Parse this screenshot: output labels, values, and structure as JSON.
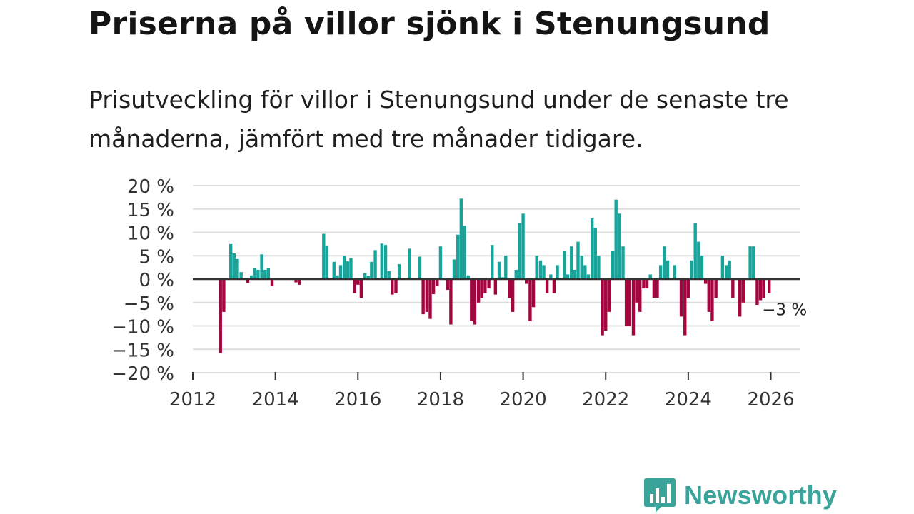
{
  "title": "Priserna på villor sjönk i Stenungsund",
  "subtitle": "Prisutveckling för villor i Stenungsund under de senaste tre månaderna, jämfört med tre månader tidigare.",
  "brand": {
    "name": "Newsworthy",
    "logo_icon": "bar-chart-speech-bubble-icon",
    "color": "#3aa39a"
  },
  "colors": {
    "positive": "#17a49b",
    "negative": "#a3063f",
    "grid": "#dddddd",
    "zero_line": "#333333"
  },
  "chart_data": {
    "type": "bar",
    "title": "Priserna på villor sjönk i Stenungsund",
    "xlabel": "",
    "ylabel": "",
    "ylim": [
      -20,
      20
    ],
    "xlim": [
      2012,
      2026.7
    ],
    "yticks": [
      {
        "value": 20,
        "label": "20 %"
      },
      {
        "value": 15,
        "label": "15 %"
      },
      {
        "value": 10,
        "label": "10 %"
      },
      {
        "value": 5,
        "label": "5 %"
      },
      {
        "value": 0,
        "label": "0 %"
      },
      {
        "value": -5,
        "label": "−5 %"
      },
      {
        "value": -10,
        "label": "−10 %"
      },
      {
        "value": -15,
        "label": "−15 %"
      },
      {
        "value": -20,
        "label": "−20 %"
      }
    ],
    "xticks": [
      {
        "value": 2012,
        "label": "2012"
      },
      {
        "value": 2014,
        "label": "2014"
      },
      {
        "value": 2016,
        "label": "2016"
      },
      {
        "value": 2018,
        "label": "2018"
      },
      {
        "value": 2020,
        "label": "2020"
      },
      {
        "value": 2022,
        "label": "2022"
      },
      {
        "value": 2024,
        "label": "2024"
      },
      {
        "value": 2026,
        "label": "2026"
      }
    ],
    "annotation": {
      "x": 2025.96,
      "y": -3,
      "label": "−3 %"
    },
    "series": [
      {
        "name": "Prisutveckling",
        "points": [
          {
            "x": 2012.67,
            "y": -15.8
          },
          {
            "x": 2012.75,
            "y": -7
          },
          {
            "x": 2012.92,
            "y": 7.5
          },
          {
            "x": 2013.0,
            "y": 5.5
          },
          {
            "x": 2013.08,
            "y": 4.3
          },
          {
            "x": 2013.17,
            "y": 1.5
          },
          {
            "x": 2013.33,
            "y": -0.8
          },
          {
            "x": 2013.42,
            "y": 0.8
          },
          {
            "x": 2013.5,
            "y": 2.3
          },
          {
            "x": 2013.58,
            "y": 2
          },
          {
            "x": 2013.67,
            "y": 5.3
          },
          {
            "x": 2013.75,
            "y": 2
          },
          {
            "x": 2013.83,
            "y": 2.3
          },
          {
            "x": 2013.92,
            "y": -1.5
          },
          {
            "x": 2014.5,
            "y": -0.7
          },
          {
            "x": 2014.58,
            "y": -1.2
          },
          {
            "x": 2015.17,
            "y": 9.7
          },
          {
            "x": 2015.25,
            "y": 7.2
          },
          {
            "x": 2015.42,
            "y": 3.7
          },
          {
            "x": 2015.5,
            "y": 0.8
          },
          {
            "x": 2015.58,
            "y": 3
          },
          {
            "x": 2015.67,
            "y": 5
          },
          {
            "x": 2015.75,
            "y": 3.8
          },
          {
            "x": 2015.83,
            "y": 4.5
          },
          {
            "x": 2015.92,
            "y": -3
          },
          {
            "x": 2016.0,
            "y": -1.2
          },
          {
            "x": 2016.08,
            "y": -4
          },
          {
            "x": 2016.17,
            "y": 1.3
          },
          {
            "x": 2016.25,
            "y": 0.7
          },
          {
            "x": 2016.33,
            "y": 3.7
          },
          {
            "x": 2016.42,
            "y": 6.2
          },
          {
            "x": 2016.58,
            "y": 7.6
          },
          {
            "x": 2016.67,
            "y": 7.3
          },
          {
            "x": 2016.75,
            "y": 1.7
          },
          {
            "x": 2016.83,
            "y": -3.3
          },
          {
            "x": 2016.92,
            "y": -3
          },
          {
            "x": 2017.0,
            "y": 3.2
          },
          {
            "x": 2017.25,
            "y": 6.5
          },
          {
            "x": 2017.5,
            "y": 4.8
          },
          {
            "x": 2017.58,
            "y": -7.5
          },
          {
            "x": 2017.67,
            "y": -7
          },
          {
            "x": 2017.75,
            "y": -8.5
          },
          {
            "x": 2017.83,
            "y": -3.2
          },
          {
            "x": 2017.92,
            "y": -1.5
          },
          {
            "x": 2018.0,
            "y": 7
          },
          {
            "x": 2018.08,
            "y": 0.3
          },
          {
            "x": 2018.17,
            "y": -2.3
          },
          {
            "x": 2018.25,
            "y": -9.7
          },
          {
            "x": 2018.33,
            "y": 4.2
          },
          {
            "x": 2018.42,
            "y": 9.5
          },
          {
            "x": 2018.5,
            "y": 17.2
          },
          {
            "x": 2018.58,
            "y": 11.4
          },
          {
            "x": 2018.67,
            "y": 0.8
          },
          {
            "x": 2018.75,
            "y": -9
          },
          {
            "x": 2018.83,
            "y": -9.7
          },
          {
            "x": 2018.92,
            "y": -5
          },
          {
            "x": 2019.0,
            "y": -4
          },
          {
            "x": 2019.08,
            "y": -3
          },
          {
            "x": 2019.17,
            "y": -2
          },
          {
            "x": 2019.25,
            "y": 7.3
          },
          {
            "x": 2019.33,
            "y": -3.3
          },
          {
            "x": 2019.42,
            "y": 3.7
          },
          {
            "x": 2019.5,
            "y": 0.4
          },
          {
            "x": 2019.58,
            "y": 5
          },
          {
            "x": 2019.67,
            "y": -4
          },
          {
            "x": 2019.75,
            "y": -7
          },
          {
            "x": 2019.83,
            "y": 2
          },
          {
            "x": 2019.92,
            "y": 12
          },
          {
            "x": 2020.0,
            "y": 14
          },
          {
            "x": 2020.08,
            "y": -1
          },
          {
            "x": 2020.17,
            "y": -9
          },
          {
            "x": 2020.25,
            "y": -6
          },
          {
            "x": 2020.33,
            "y": 5
          },
          {
            "x": 2020.42,
            "y": 4
          },
          {
            "x": 2020.5,
            "y": 3
          },
          {
            "x": 2020.58,
            "y": -3
          },
          {
            "x": 2020.67,
            "y": 1
          },
          {
            "x": 2020.75,
            "y": -3
          },
          {
            "x": 2020.83,
            "y": 3
          },
          {
            "x": 2021.0,
            "y": 6
          },
          {
            "x": 2021.08,
            "y": 1
          },
          {
            "x": 2021.17,
            "y": 7
          },
          {
            "x": 2021.25,
            "y": 2
          },
          {
            "x": 2021.33,
            "y": 8
          },
          {
            "x": 2021.42,
            "y": 5
          },
          {
            "x": 2021.5,
            "y": 3
          },
          {
            "x": 2021.58,
            "y": 1
          },
          {
            "x": 2021.67,
            "y": 13
          },
          {
            "x": 2021.75,
            "y": 11
          },
          {
            "x": 2021.83,
            "y": 5
          },
          {
            "x": 2021.92,
            "y": -12
          },
          {
            "x": 2022.0,
            "y": -11
          },
          {
            "x": 2022.08,
            "y": -7
          },
          {
            "x": 2022.17,
            "y": 6
          },
          {
            "x": 2022.25,
            "y": 17
          },
          {
            "x": 2022.33,
            "y": 14
          },
          {
            "x": 2022.42,
            "y": 7
          },
          {
            "x": 2022.5,
            "y": -10
          },
          {
            "x": 2022.58,
            "y": -10
          },
          {
            "x": 2022.67,
            "y": -12
          },
          {
            "x": 2022.75,
            "y": -5
          },
          {
            "x": 2022.83,
            "y": -7
          },
          {
            "x": 2022.92,
            "y": -2
          },
          {
            "x": 2023.0,
            "y": -2
          },
          {
            "x": 2023.08,
            "y": 1
          },
          {
            "x": 2023.17,
            "y": -4
          },
          {
            "x": 2023.25,
            "y": -4
          },
          {
            "x": 2023.33,
            "y": 3
          },
          {
            "x": 2023.42,
            "y": 7
          },
          {
            "x": 2023.5,
            "y": 4
          },
          {
            "x": 2023.67,
            "y": 3
          },
          {
            "x": 2023.83,
            "y": -8
          },
          {
            "x": 2023.92,
            "y": -12
          },
          {
            "x": 2024.0,
            "y": -4
          },
          {
            "x": 2024.08,
            "y": 4
          },
          {
            "x": 2024.17,
            "y": 12
          },
          {
            "x": 2024.25,
            "y": 8
          },
          {
            "x": 2024.33,
            "y": 5
          },
          {
            "x": 2024.42,
            "y": -1
          },
          {
            "x": 2024.5,
            "y": -7
          },
          {
            "x": 2024.58,
            "y": -9
          },
          {
            "x": 2024.67,
            "y": -4
          },
          {
            "x": 2024.83,
            "y": 5
          },
          {
            "x": 2024.92,
            "y": 3
          },
          {
            "x": 2025.0,
            "y": 4
          },
          {
            "x": 2025.08,
            "y": -4
          },
          {
            "x": 2025.25,
            "y": -8
          },
          {
            "x": 2025.33,
            "y": -5
          },
          {
            "x": 2025.5,
            "y": 7
          },
          {
            "x": 2025.58,
            "y": 7
          },
          {
            "x": 2025.67,
            "y": -5.5
          },
          {
            "x": 2025.75,
            "y": -4.5
          },
          {
            "x": 2025.83,
            "y": -4
          },
          {
            "x": 2025.96,
            "y": -3
          }
        ]
      }
    ]
  }
}
